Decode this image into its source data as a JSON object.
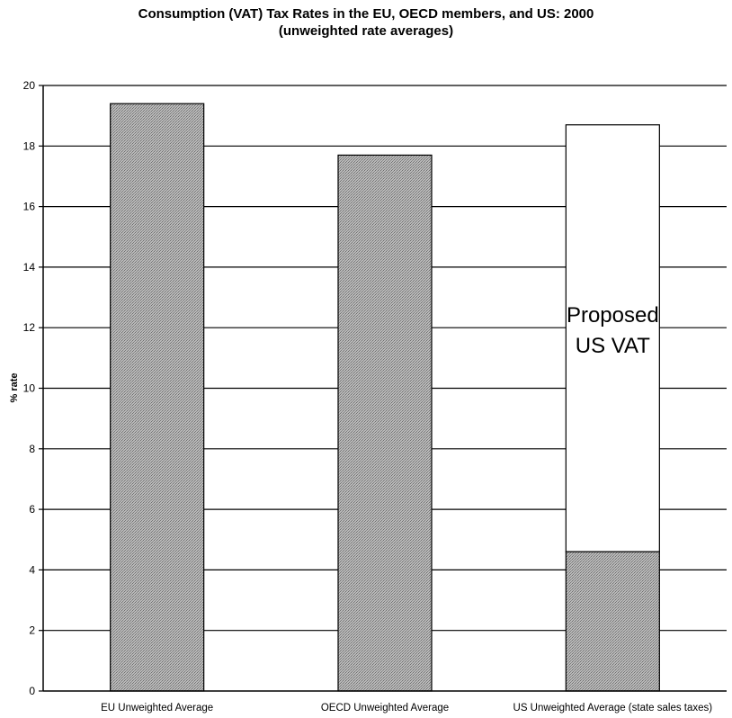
{
  "chart_data": {
    "type": "bar",
    "title": "Consumption (VAT) Tax Rates in the EU, OECD members, and US: 2000",
    "subtitle": "(unweighted rate averages)",
    "xlabel": "",
    "ylabel": "% rate",
    "ylim": [
      0,
      20
    ],
    "yticks": [
      0,
      2,
      4,
      6,
      8,
      10,
      12,
      14,
      16,
      18,
      20
    ],
    "grid": true,
    "categories": [
      "EU Unweighted Average",
      "OECD Unweighted Average",
      "US Unweighted Average (state sales taxes)"
    ],
    "values": [
      19.4,
      17.7,
      4.6
    ],
    "stacked_top": {
      "category": "US Unweighted Average (state sales taxes)",
      "base": 4.6,
      "top": 18.7,
      "label_lines": [
        "Proposed",
        "US VAT"
      ]
    },
    "colors": {
      "bar_fill": "#b9b9b9",
      "bar_hatch": "#6e6e6e",
      "proposed_fill": "#ffffff",
      "grid": "#000000"
    }
  }
}
